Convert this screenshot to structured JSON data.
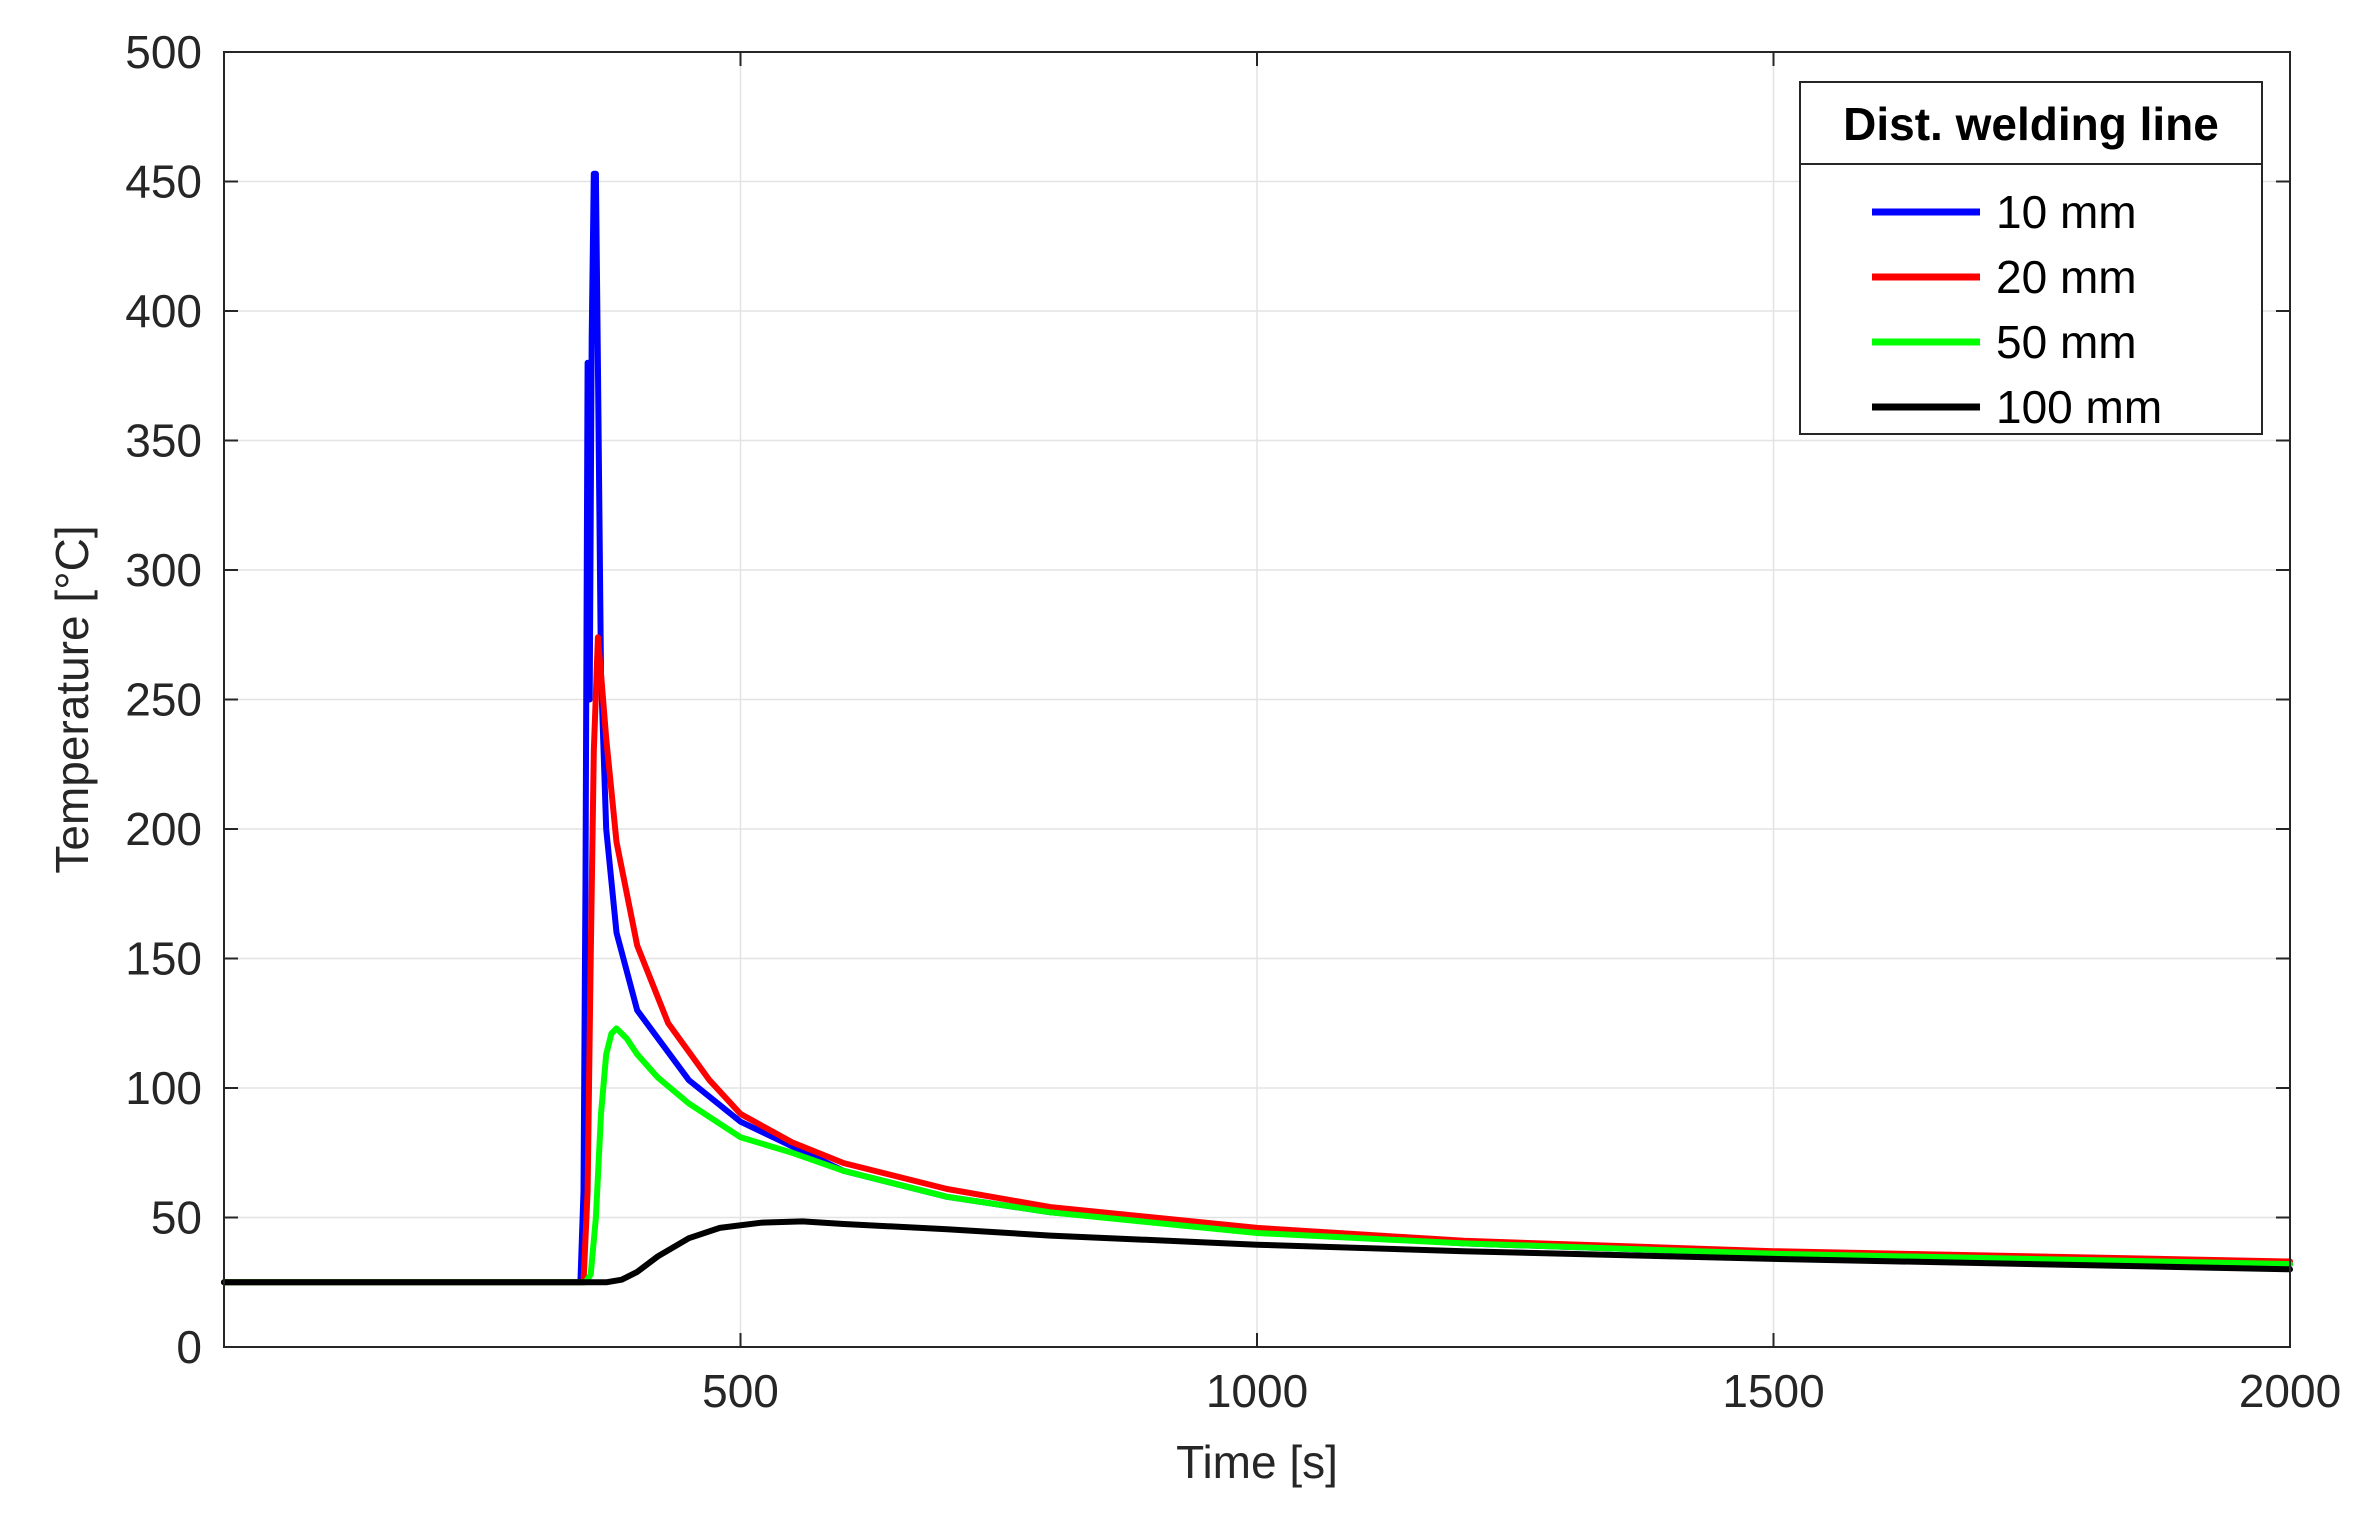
{
  "chart_data": {
    "type": "line",
    "xlabel": "Time [s]",
    "ylabel": "Temperature [°C]",
    "xlim": [
      0,
      2000
    ],
    "ylim": [
      0,
      500
    ],
    "xticks": [
      500,
      1000,
      1500,
      2000
    ],
    "yticks": [
      0,
      50,
      100,
      150,
      200,
      250,
      300,
      350,
      400,
      450,
      500
    ],
    "grid": true,
    "legend": {
      "title": "Dist. welding line",
      "placement": "top-right"
    },
    "series": [
      {
        "name": "10 mm",
        "color": "#0000ff",
        "points": [
          [
            0,
            25
          ],
          [
            345,
            25
          ],
          [
            348,
            60
          ],
          [
            350,
            180
          ],
          [
            352,
            380
          ],
          [
            354,
            250
          ],
          [
            356,
            390
          ],
          [
            358,
            453
          ],
          [
            360,
            453
          ],
          [
            362,
            380
          ],
          [
            365,
            260
          ],
          [
            370,
            200
          ],
          [
            380,
            160
          ],
          [
            400,
            130
          ],
          [
            450,
            103
          ],
          [
            500,
            87
          ],
          [
            600,
            68
          ],
          [
            700,
            58
          ],
          [
            800,
            52
          ],
          [
            1000,
            45
          ],
          [
            1200,
            40
          ],
          [
            1500,
            36
          ],
          [
            2000,
            32
          ]
        ]
      },
      {
        "name": "20 mm",
        "color": "#ff0000",
        "points": [
          [
            0,
            25
          ],
          [
            348,
            25
          ],
          [
            352,
            60
          ],
          [
            355,
            150
          ],
          [
            358,
            230
          ],
          [
            362,
            274
          ],
          [
            365,
            260
          ],
          [
            370,
            235
          ],
          [
            380,
            195
          ],
          [
            400,
            155
          ],
          [
            430,
            125
          ],
          [
            470,
            103
          ],
          [
            500,
            90
          ],
          [
            550,
            79
          ],
          [
            600,
            71
          ],
          [
            700,
            61
          ],
          [
            800,
            54
          ],
          [
            1000,
            46
          ],
          [
            1200,
            41
          ],
          [
            1500,
            37
          ],
          [
            2000,
            33
          ]
        ]
      },
      {
        "name": "50 mm",
        "color": "#00ff00",
        "points": [
          [
            0,
            25
          ],
          [
            350,
            25
          ],
          [
            355,
            28
          ],
          [
            360,
            50
          ],
          [
            365,
            90
          ],
          [
            370,
            113
          ],
          [
            375,
            121
          ],
          [
            380,
            123
          ],
          [
            390,
            119
          ],
          [
            400,
            113
          ],
          [
            420,
            104
          ],
          [
            450,
            94
          ],
          [
            500,
            81
          ],
          [
            550,
            75
          ],
          [
            600,
            68
          ],
          [
            700,
            58
          ],
          [
            800,
            52
          ],
          [
            1000,
            44
          ],
          [
            1200,
            40
          ],
          [
            1500,
            36
          ],
          [
            2000,
            32
          ]
        ]
      },
      {
        "name": "100 mm",
        "color": "#000000",
        "points": [
          [
            0,
            25
          ],
          [
            370,
            25
          ],
          [
            385,
            26
          ],
          [
            400,
            29
          ],
          [
            420,
            35
          ],
          [
            450,
            42
          ],
          [
            480,
            46
          ],
          [
            520,
            48
          ],
          [
            560,
            48.5
          ],
          [
            600,
            47.5
          ],
          [
            700,
            45.5
          ],
          [
            800,
            43
          ],
          [
            1000,
            39.5
          ],
          [
            1200,
            37
          ],
          [
            1500,
            34
          ],
          [
            2000,
            30
          ]
        ]
      }
    ]
  }
}
